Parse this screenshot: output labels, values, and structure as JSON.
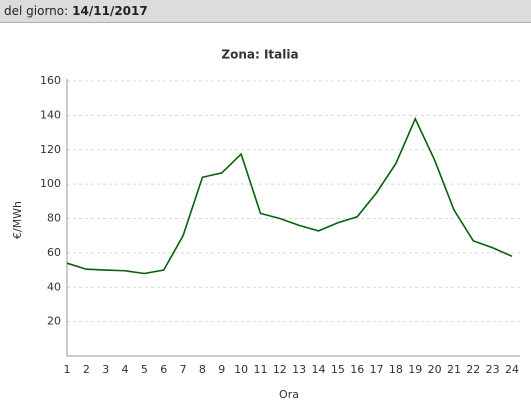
{
  "header": {
    "label": "del giorno:",
    "date": "14/11/2017"
  },
  "chart_data": {
    "type": "line",
    "title": "Zona: Italia",
    "y_label": "€/MWh",
    "x_label": "Ora",
    "categories": [
      "1",
      "2",
      "3",
      "4",
      "5",
      "6",
      "7",
      "8",
      "9",
      "10",
      "11",
      "12",
      "13",
      "14",
      "15",
      "16",
      "17",
      "18",
      "19",
      "20",
      "21",
      "22",
      "23",
      "24"
    ],
    "series": [
      {
        "name": "Italia",
        "color": "#0b5e0b",
        "values": [
          54,
          50.5,
          50,
          49.6,
          48,
          50,
          70,
          104,
          106.5,
          117.5,
          83,
          80,
          76,
          72.8,
          77.5,
          81,
          95,
          112,
          138,
          114,
          85,
          67,
          63,
          58
        ]
      }
    ],
    "ylim": [
      0,
      160
    ],
    "yticks": [
      20,
      40,
      60,
      80,
      100,
      120,
      140,
      160
    ],
    "grid": true
  }
}
